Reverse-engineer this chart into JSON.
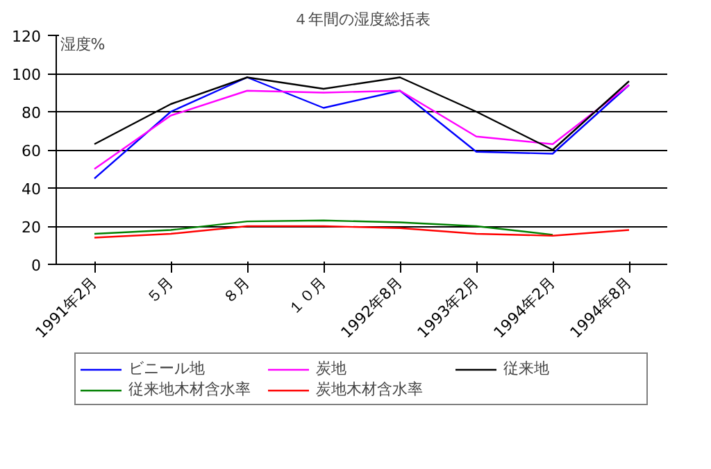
{
  "chart_data": {
    "type": "line",
    "title": "４年間の湿度総括表",
    "ylabel": "湿度%",
    "categories": [
      "1991年2月",
      "５月",
      "８月",
      "１０月",
      "1992年8月",
      "1993年2月",
      "1994年2月",
      "1994年8月"
    ],
    "series": [
      {
        "name": "ビニール地",
        "color": "#0000ff",
        "values": [
          45,
          80,
          98,
          82,
          91,
          59,
          58,
          94
        ]
      },
      {
        "name": "炭地",
        "color": "#ff00ff",
        "values": [
          50,
          78,
          91,
          90,
          91,
          67,
          63,
          94
        ]
      },
      {
        "name": "従来地",
        "color": "#000000",
        "values": [
          63,
          84,
          98,
          92,
          98,
          80,
          60,
          96
        ]
      },
      {
        "name": "従来地木材含水率",
        "color": "#008000",
        "values": [
          16,
          18,
          22.5,
          23,
          22,
          20,
          15.5,
          null
        ]
      },
      {
        "name": "炭地木材含水率",
        "color": "#ff0000",
        "values": [
          14,
          16,
          20,
          20,
          19,
          16,
          15,
          18
        ]
      }
    ],
    "ylim": [
      0,
      120
    ],
    "yticks": [
      0,
      20,
      40,
      60,
      80,
      100,
      120
    ],
    "grid": "y",
    "legend": "bottom"
  }
}
